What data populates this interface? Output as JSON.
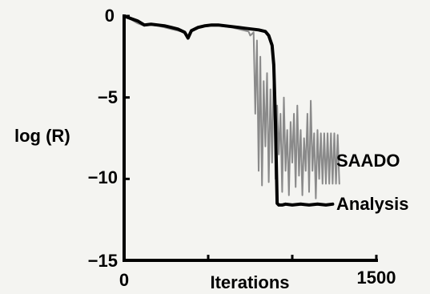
{
  "chart_data": {
    "type": "line",
    "xlabel": "Iterations",
    "ylabel": "log (R)",
    "xlim": [
      0,
      1500
    ],
    "ylim": [
      -15,
      0
    ],
    "xticks": [
      0,
      500,
      1000,
      1500
    ],
    "xtick_labels": [
      "0",
      "",
      "",
      "1500"
    ],
    "yticks": [
      0,
      -5,
      -10,
      -15
    ],
    "ytick_labels": [
      "0",
      "−5",
      "−10",
      "−15"
    ],
    "grid": false,
    "legend": "none",
    "series": [
      {
        "name": "SAADO",
        "color": "#8a8a8a",
        "x": [
          0,
          40,
          80,
          120,
          160,
          200,
          240,
          280,
          320,
          360,
          380,
          400,
          440,
          480,
          520,
          560,
          600,
          640,
          660,
          680,
          700,
          720,
          740,
          750,
          760,
          770,
          780,
          790,
          800,
          810,
          820,
          830,
          840,
          850,
          860,
          870,
          880,
          890,
          900,
          910,
          920,
          930,
          940,
          950,
          960,
          970,
          980,
          990,
          1000,
          1010,
          1020,
          1030,
          1040,
          1050,
          1060,
          1070,
          1080,
          1090,
          1100,
          1110,
          1120,
          1130,
          1140,
          1150,
          1160,
          1170,
          1180,
          1190,
          1200,
          1210,
          1220,
          1230,
          1240,
          1250,
          1260,
          1270,
          1280
        ],
        "y": [
          -0.05,
          -0.2,
          -0.45,
          -0.6,
          -0.55,
          -0.6,
          -0.7,
          -0.8,
          -0.9,
          -1.0,
          -1.3,
          -0.95,
          -0.75,
          -0.65,
          -0.6,
          -0.6,
          -0.65,
          -0.7,
          -0.75,
          -0.8,
          -0.85,
          -0.9,
          -0.95,
          -1.2,
          -1.1,
          -1.0,
          -6.0,
          -1.5,
          -9.5,
          -2.5,
          -10.4,
          -4.0,
          -8.0,
          -3.5,
          -10.2,
          -4.5,
          -9.0,
          -3.0,
          -10.0,
          -5.5,
          -8.5,
          -6.0,
          -10.8,
          -5.0,
          -9.5,
          -7.0,
          -11.0,
          -6.5,
          -9.0,
          -6.0,
          -10.5,
          -5.5,
          -9.8,
          -7.0,
          -11.0,
          -7.5,
          -9.5,
          -6.0,
          -10.8,
          -5.2,
          -9.5,
          -7.2,
          -11.2,
          -7.0,
          -10.0,
          -7.2,
          -10.3,
          -7.2,
          -10.3,
          -7.2,
          -10.3,
          -7.2,
          -10.3,
          -7.2,
          -10.3,
          -7.3,
          -10.3
        ]
      },
      {
        "name": "Analysis",
        "color": "#000000",
        "x": [
          0,
          40,
          80,
          120,
          160,
          200,
          240,
          280,
          320,
          360,
          380,
          400,
          440,
          480,
          520,
          560,
          600,
          640,
          680,
          720,
          760,
          800,
          840,
          860,
          880,
          890,
          900,
          910,
          920,
          940,
          960,
          1000,
          1050,
          1100,
          1150,
          1200,
          1240
        ],
        "y": [
          0,
          -0.15,
          -0.3,
          -0.55,
          -0.5,
          -0.55,
          -0.6,
          -0.7,
          -0.8,
          -1.0,
          -1.35,
          -0.9,
          -0.7,
          -0.6,
          -0.55,
          -0.55,
          -0.6,
          -0.65,
          -0.7,
          -0.75,
          -0.8,
          -0.85,
          -0.95,
          -1.2,
          -1.8,
          -3.0,
          -6.5,
          -11.5,
          -11.6,
          -11.6,
          -11.55,
          -11.6,
          -11.55,
          -11.6,
          -11.55,
          -11.6,
          -11.55
        ]
      }
    ]
  }
}
